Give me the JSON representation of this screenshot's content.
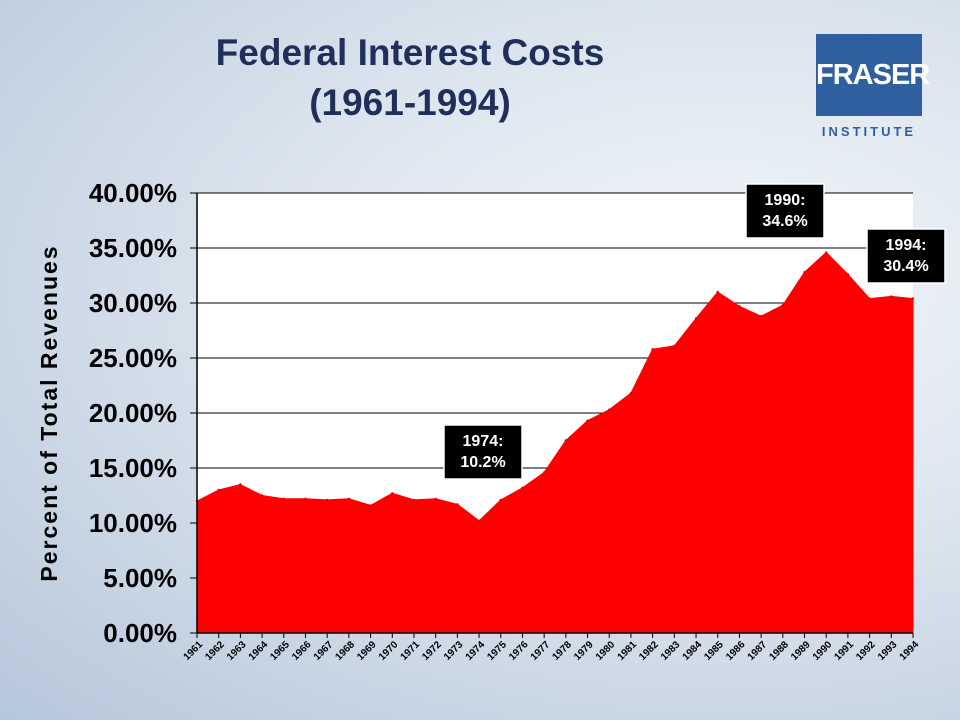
{
  "logo": {
    "name": "FRASER",
    "subtitle": "INSTITUTE"
  },
  "chart_data": {
    "type": "area",
    "title": [
      "Federal Interest Costs",
      "(1961-1994)"
    ],
    "ylabel": "Percent of Total Revenues",
    "xlabel": "",
    "ylim": [
      0,
      40
    ],
    "yticks": [
      "0.00%",
      "5.00%",
      "10.00%",
      "15.00%",
      "20.00%",
      "25.00%",
      "30.00%",
      "35.00%",
      "40.00%"
    ],
    "grid": true,
    "legend": "none",
    "fill_color": "#ff0000",
    "x": [
      "1961",
      "1962",
      "1963",
      "1964",
      "1965",
      "1966",
      "1967",
      "1968",
      "1969",
      "1970",
      "1971",
      "1972",
      "1973",
      "1974",
      "1975",
      "1976",
      "1977",
      "1978",
      "1979",
      "1980",
      "1981",
      "1982",
      "1983",
      "1984",
      "1985",
      "1986",
      "1987",
      "1988",
      "1989",
      "1990",
      "1991",
      "1992",
      "1993",
      "1994"
    ],
    "series": [
      {
        "values": [
          12.0,
          13.0,
          13.5,
          12.5,
          12.2,
          12.2,
          12.1,
          12.2,
          11.6,
          12.7,
          12.1,
          12.2,
          11.7,
          10.2,
          12.1,
          13.2,
          14.6,
          17.5,
          19.3,
          20.3,
          21.8,
          25.8,
          26.1,
          28.6,
          31.0,
          29.7,
          28.8,
          29.8,
          32.8,
          34.6,
          32.6,
          30.4,
          30.6,
          30.4
        ]
      }
    ],
    "annotations": [
      {
        "year": "1974",
        "lines": [
          "1974:",
          "10.2%"
        ]
      },
      {
        "year": "1990",
        "lines": [
          "1990:",
          "34.6%"
        ]
      },
      {
        "year": "1994",
        "lines": [
          "1994:",
          "30.4%"
        ]
      }
    ]
  }
}
